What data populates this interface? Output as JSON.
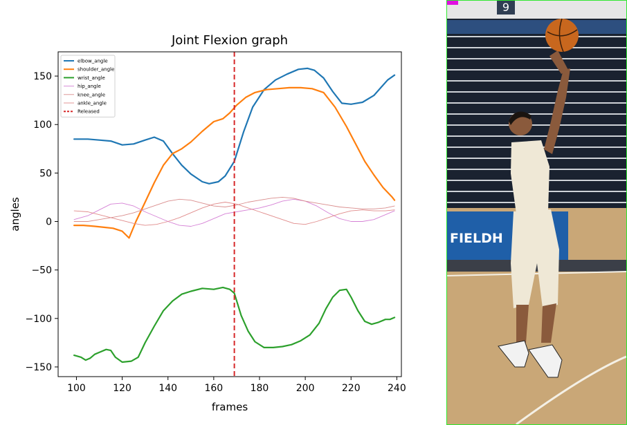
{
  "chart_data": {
    "type": "line",
    "title": "Joint Flexion graph",
    "xlabel": "frames",
    "ylabel": "angles",
    "xlim": [
      92,
      242
    ],
    "ylim": [
      -160,
      175
    ],
    "xticks": [
      100,
      120,
      140,
      160,
      180,
      200,
      220,
      240
    ],
    "yticks": [
      -150,
      -100,
      -50,
      0,
      50,
      100,
      150
    ],
    "grid": false,
    "legend_position": "top-left",
    "released_frame": 169,
    "series": [
      {
        "name": "elbow_angle",
        "color": "#1f77b4",
        "width": 2.2,
        "x": [
          99,
          105,
          110,
          115,
          120,
          125,
          130,
          134,
          138,
          142,
          146,
          150,
          155,
          158,
          162,
          165,
          169,
          173,
          177,
          182,
          187,
          192,
          197,
          201,
          204,
          208,
          212,
          216,
          220,
          225,
          230,
          233,
          236,
          239
        ],
        "values": [
          85,
          85,
          84,
          83,
          79,
          80,
          84,
          87,
          83,
          70,
          58,
          49,
          41,
          39,
          41,
          47,
          62,
          92,
          118,
          136,
          146,
          152,
          157,
          158,
          156,
          148,
          134,
          122,
          121,
          123,
          130,
          138,
          146,
          151
        ]
      },
      {
        "name": "shoulder_angle",
        "color": "#ff7f0e",
        "width": 2.2,
        "x": [
          99,
          103,
          108,
          112,
          116,
          120,
          123,
          126,
          130,
          134,
          138,
          142,
          146,
          150,
          155,
          160,
          164,
          167,
          170,
          174,
          178,
          183,
          188,
          193,
          198,
          203,
          208,
          213,
          218,
          222,
          226,
          230,
          234,
          238,
          239
        ],
        "values": [
          -4,
          -4,
          -5,
          -6,
          -7,
          -10,
          -17,
          0,
          20,
          40,
          58,
          70,
          75,
          82,
          93,
          103,
          106,
          112,
          120,
          128,
          133,
          136,
          137,
          138,
          138,
          137,
          133,
          118,
          98,
          80,
          62,
          48,
          35,
          25,
          22
        ]
      },
      {
        "name": "wrist_angle",
        "color": "#2ca02c",
        "width": 2.2,
        "x": [
          99,
          102,
          104,
          106,
          108,
          110,
          113,
          115,
          117,
          120,
          124,
          127,
          130,
          134,
          138,
          142,
          146,
          150,
          155,
          160,
          164,
          167,
          169,
          172,
          175,
          178,
          182,
          186,
          190,
          194,
          198,
          202,
          206,
          209,
          212,
          215,
          218,
          220,
          223,
          226,
          229,
          232,
          235,
          237,
          239
        ],
        "values": [
          -138,
          -140,
          -143,
          -141,
          -137,
          -135,
          -132,
          -133,
          -140,
          -145,
          -144,
          -140,
          -125,
          -108,
          -92,
          -82,
          -75,
          -72,
          -69,
          -70,
          -68,
          -70,
          -74,
          -97,
          -113,
          -124,
          -130,
          -130,
          -129,
          -127,
          -123,
          -117,
          -105,
          -90,
          -78,
          -71,
          -70,
          -78,
          -92,
          -103,
          -106,
          -104,
          -101,
          -101,
          -99
        ]
      },
      {
        "name": "hip_angle",
        "color": "#d580d5",
        "width": 0.9,
        "x": [
          99,
          105,
          110,
          115,
          120,
          125,
          130,
          135,
          140,
          145,
          150,
          155,
          160,
          165,
          170,
          175,
          180,
          185,
          190,
          195,
          200,
          205,
          210,
          215,
          220,
          225,
          230,
          235,
          239
        ],
        "values": [
          2,
          6,
          12,
          18,
          19,
          16,
          10,
          5,
          0,
          -4,
          -5,
          -2,
          3,
          8,
          10,
          12,
          14,
          17,
          21,
          23,
          21,
          16,
          9,
          3,
          0,
          0,
          2,
          7,
          11
        ]
      },
      {
        "name": "knee_angle",
        "color": "#d98c8c",
        "width": 0.9,
        "x": [
          99,
          105,
          110,
          115,
          120,
          125,
          130,
          135,
          140,
          145,
          150,
          155,
          160,
          165,
          170,
          175,
          180,
          185,
          190,
          195,
          200,
          205,
          210,
          215,
          220,
          225,
          230,
          235,
          239
        ],
        "values": [
          0,
          0,
          2,
          4,
          6,
          9,
          13,
          17,
          21,
          23,
          22,
          19,
          16,
          15,
          17,
          20,
          22,
          24,
          25,
          24,
          21,
          19,
          17,
          15,
          14,
          13,
          13,
          14,
          16
        ]
      },
      {
        "name": "ankle_angle",
        "color": "#e08a8a",
        "width": 0.9,
        "x": [
          99,
          105,
          110,
          115,
          120,
          125,
          130,
          135,
          140,
          145,
          150,
          155,
          160,
          165,
          170,
          175,
          180,
          185,
          190,
          195,
          200,
          205,
          210,
          215,
          220,
          225,
          230,
          235,
          239
        ],
        "values": [
          11,
          10,
          7,
          4,
          1,
          -2,
          -4,
          -3,
          0,
          4,
          9,
          14,
          18,
          20,
          18,
          14,
          10,
          6,
          2,
          -2,
          -3,
          0,
          4,
          8,
          11,
          12,
          11,
          11,
          12
        ]
      }
    ],
    "annotations": [
      {
        "name": "Released",
        "type": "vline",
        "x": 169,
        "color": "#d62728",
        "style": "dashed"
      }
    ]
  },
  "photo": {
    "banner_text": "FIELDH",
    "sign_text": "9",
    "colors": {
      "border": "#2ee82e",
      "marker": "#e010e0",
      "banner": "#1f5fa8",
      "floor": "#c9a777",
      "bleachers": "#1a2230",
      "outfit": "#efe8d6"
    }
  }
}
